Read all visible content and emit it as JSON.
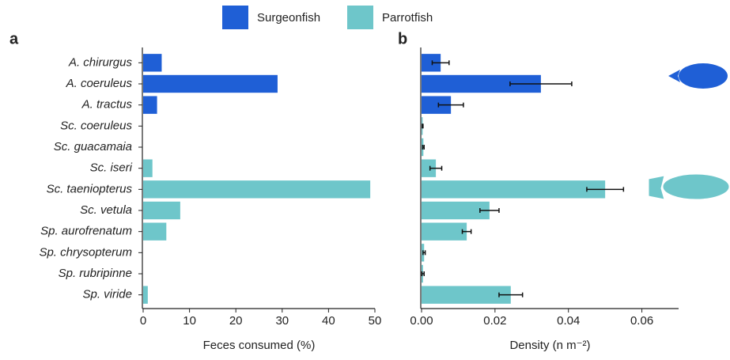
{
  "chart_data": [
    {
      "type": "bar",
      "orientation": "horizontal",
      "label": "a",
      "xlabel": "Feces consumed (%)",
      "categories": [
        "A. chirurgus",
        "A. coeruleus",
        "A. tractus",
        "Sc. coeruleus",
        "Sc. guacamaia",
        "Sc. iseri",
        "Sc. taeniopterus",
        "Sc. vetula",
        "Sp. aurofrenatum",
        "Sp. chrysopterum",
        "Sp. rubripinne",
        "Sp. viride"
      ],
      "series": [
        {
          "name": "Surgeonfish",
          "color": "#1f5fd6",
          "values": [
            4,
            29,
            3,
            null,
            null,
            null,
            null,
            null,
            null,
            null,
            null,
            null
          ]
        },
        {
          "name": "Parrotfish",
          "color": "#6ec6ca",
          "values": [
            null,
            null,
            null,
            0,
            0,
            2,
            49,
            8,
            5,
            0,
            0,
            1
          ]
        }
      ],
      "xlim": [
        0,
        50
      ],
      "xticks": [
        0,
        10,
        20,
        30,
        40,
        50
      ]
    },
    {
      "type": "bar",
      "orientation": "horizontal",
      "label": "b",
      "xlabel": "Density (n m⁻²)",
      "series": [
        {
          "name": "Surgeonfish",
          "color": "#1f5fd6",
          "values": [
            0.0052,
            0.0325,
            0.008,
            null,
            null,
            null,
            null,
            null,
            null,
            null,
            null,
            null
          ],
          "errors": [
            0.0023,
            0.0084,
            0.0034,
            null,
            null,
            null,
            null,
            null,
            null,
            null,
            null,
            null
          ]
        },
        {
          "name": "Parrotfish",
          "color": "#6ec6ca",
          "values": [
            null,
            null,
            null,
            0.0003,
            0.0005,
            0.0039,
            0.05,
            0.0185,
            0.0123,
            0.0007,
            0.0004,
            0.0243
          ],
          "errors": [
            null,
            null,
            null,
            0.0001,
            0.0002,
            0.0016,
            0.005,
            0.0026,
            0.0012,
            0.0003,
            0.0003,
            0.0032
          ]
        }
      ],
      "xlim": [
        0,
        0.07
      ],
      "xticks": [
        {
          "value": 0,
          "label": "0.00"
        },
        0.02,
        0.04,
        0.06
      ]
    }
  ]
}
